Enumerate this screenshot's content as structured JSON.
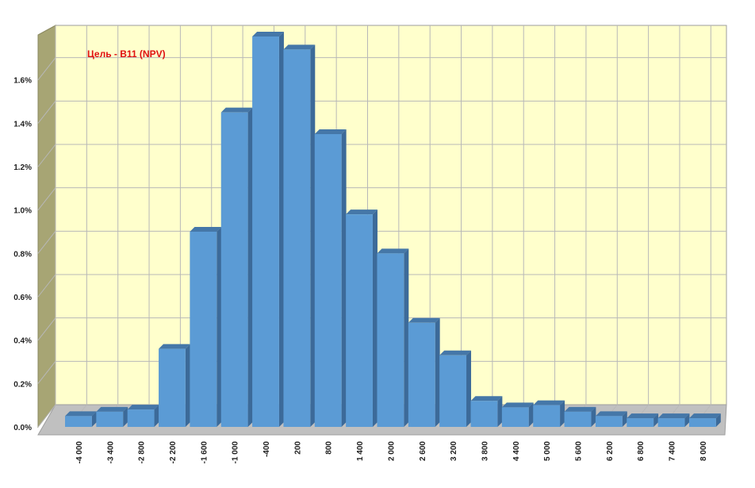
{
  "chart_data": {
    "type": "bar",
    "title": "Цель - B11 (NPV)",
    "categories": [
      "-4 000",
      "-3 400",
      "-2 800",
      "-2 200",
      "-1 600",
      "-1 000",
      "-400",
      "200",
      "800",
      "1 400",
      "2 000",
      "2 600",
      "3 200",
      "3 800",
      "4 400",
      "5 000",
      "5 600",
      "6 200",
      "6 800",
      "7 400",
      "8 000"
    ],
    "values": [
      0.05,
      0.07,
      0.08,
      0.36,
      0.9,
      1.45,
      1.8,
      1.74,
      1.35,
      0.98,
      0.8,
      0.48,
      0.33,
      0.12,
      0.09,
      0.1,
      0.07,
      0.05,
      0.04,
      0.04,
      0.04
    ],
    "yticks": [
      "0.0%",
      "0.2%",
      "0.4%",
      "0.6%",
      "0.8%",
      "1.0%",
      "1.2%",
      "1.4%",
      "1.6%"
    ],
    "ylim": [
      0,
      1.8
    ],
    "unit": "%",
    "grid": true,
    "colors": {
      "wall": "#ffffcc",
      "side_wall": "#a7a574",
      "floor": "#c0c0c0",
      "grid": "#b8b8b8",
      "bar_front": "#5b9bd5",
      "bar_top": "#4577a8",
      "bar_side": "#3c6a99",
      "title": "#e01010"
    }
  }
}
